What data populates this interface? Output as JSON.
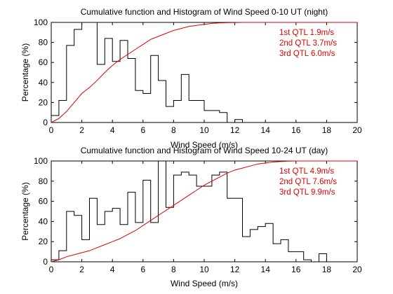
{
  "chart_data": [
    {
      "type": "line",
      "title": "Cumulative function and Histogram of Wind Speed 0-10 UT (night)",
      "xlabel": "Wind Speed (m/s)",
      "ylabel": "Percentage (%)",
      "xlim": [
        0,
        20
      ],
      "ylim": [
        0,
        100
      ],
      "xticks": [
        "0",
        "2",
        "4",
        "6",
        "8",
        "10",
        "12",
        "14",
        "16",
        "18",
        "20"
      ],
      "yticks": [
        "0",
        "20",
        "40",
        "60",
        "80",
        "100"
      ],
      "grid": false,
      "annotations": [
        "1st QTL 1.9m/s",
        "2nd QTL 3.7m/s",
        "3rd QTL 6.0m/s"
      ],
      "annotation_color": "#e00000",
      "histogram": {
        "color": "#000000",
        "bin_width": 0.5,
        "bin_start": 0,
        "values": [
          7,
          22,
          77,
          93,
          100,
          100,
          58,
          84,
          61,
          82,
          64,
          32,
          29,
          67,
          42,
          16,
          22,
          48,
          22,
          22,
          12,
          12,
          10,
          0,
          3,
          0,
          0,
          0,
          0,
          0,
          0,
          0,
          0,
          0,
          0,
          0,
          0,
          0,
          0,
          0
        ]
      },
      "cumulative": {
        "color": "#e00000",
        "x": [
          0,
          0.5,
          1,
          1.5,
          2,
          2.5,
          3,
          3.5,
          4,
          4.5,
          5,
          5.5,
          6,
          6.5,
          7,
          7.5,
          8,
          8.5,
          9,
          9.5,
          10,
          10.5,
          11,
          11.5,
          12,
          12.5,
          13,
          20
        ],
        "y": [
          0,
          4,
          11,
          20,
          29,
          35,
          42,
          50,
          57,
          63,
          68,
          73,
          78,
          83,
          86,
          89,
          92,
          94,
          96,
          97,
          98,
          99,
          99.5,
          99.7,
          99.8,
          100,
          100,
          100
        ]
      }
    },
    {
      "type": "line",
      "title": "Cumulative function and Histogram of Wind Speed 10-24 UT (day)",
      "xlabel": "Wind Speed (m/s)",
      "ylabel": "Percentage (%)",
      "xlim": [
        0,
        20
      ],
      "ylim": [
        0,
        100
      ],
      "xticks": [
        "0",
        "2",
        "4",
        "6",
        "8",
        "10",
        "12",
        "14",
        "16",
        "18",
        "20"
      ],
      "yticks": [
        "0",
        "20",
        "40",
        "60",
        "80",
        "100"
      ],
      "grid": false,
      "annotations": [
        "1st QTL 4.9m/s",
        "2nd QTL 7.6m/s",
        "3rd QTL 9.9m/s"
      ],
      "annotation_color": "#e00000",
      "histogram": {
        "color": "#000000",
        "bin_width": 0.5,
        "bin_start": 0,
        "values": [
          2,
          11,
          50,
          46,
          22,
          63,
          37,
          50,
          53,
          37,
          69,
          39,
          81,
          39,
          100,
          54,
          86,
          89,
          86,
          75,
          75,
          86,
          89,
          63,
          63,
          25,
          32,
          35,
          38,
          18,
          22,
          10,
          10,
          2,
          0,
          8,
          0,
          0,
          0,
          0
        ]
      },
      "cumulative": {
        "color": "#e00000",
        "x": [
          0,
          0.5,
          1,
          1.5,
          2,
          2.5,
          3,
          3.5,
          4,
          4.5,
          5,
          5.5,
          6,
          6.5,
          7,
          7.5,
          8,
          8.5,
          9,
          9.5,
          10,
          10.5,
          11,
          11.5,
          12,
          12.5,
          13,
          13.5,
          14,
          14.5,
          15,
          15.5,
          16,
          20
        ],
        "y": [
          0,
          2,
          5,
          7,
          9,
          11,
          14,
          17,
          20,
          23,
          27,
          31,
          36,
          41,
          46,
          51,
          56,
          61,
          66,
          71,
          76,
          80,
          84,
          88,
          91,
          93,
          95,
          97,
          98,
          99,
          99.5,
          99.8,
          100,
          100
        ]
      }
    }
  ]
}
